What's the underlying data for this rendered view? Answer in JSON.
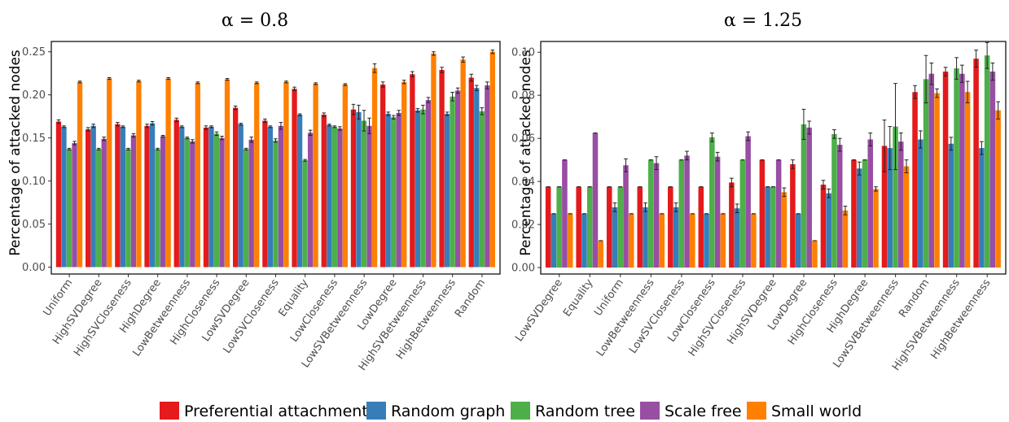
{
  "colors": [
    "#e41a1c",
    "#377eb8",
    "#4daf4a",
    "#984ea3",
    "#ff7f00"
  ],
  "legend": [
    "Preferential attachment",
    "Random graph",
    "Random tree",
    "Scale free",
    "Small world"
  ],
  "chart_data": [
    {
      "type": "bar",
      "title": "α = 0.8",
      "xlabel": "",
      "ylabel": "Percentage of attacked nodes",
      "ylim": [
        -0.008,
        0.262
      ],
      "yticks": [
        "0.00",
        "0.05",
        "0.10",
        "0.15",
        "0.20",
        "0.25"
      ],
      "ytick_values": [
        0,
        0.05,
        0.1,
        0.15,
        0.2,
        0.25
      ],
      "grid": false,
      "categories": [
        "Uniform",
        "HighSVDegree",
        "HighSVCloseness",
        "HighDegree",
        "LowBetweenness",
        "HighCloseness",
        "LowSVDegree",
        "LowSVCloseness",
        "Equality",
        "LowCloseness",
        "LowSVBetweenness",
        "LowDegree",
        "HighSVBetweenness",
        "HighBetweenness",
        "Random"
      ],
      "series": [
        {
          "name": "Preferential attachment",
          "values": [
            0.169,
            0.16,
            0.166,
            0.164,
            0.171,
            0.162,
            0.185,
            0.17,
            0.207,
            0.177,
            0.183,
            0.212,
            0.224,
            0.229,
            0.22
          ],
          "errors": [
            0.002,
            0.002,
            0.002,
            0.002,
            0.002,
            0.002,
            0.002,
            0.002,
            0.002,
            0.002,
            0.006,
            0.003,
            0.003,
            0.003,
            0.004
          ]
        },
        {
          "name": "Random graph",
          "values": [
            0.163,
            0.164,
            0.163,
            0.167,
            0.163,
            0.163,
            0.166,
            0.163,
            0.177,
            0.165,
            0.18,
            0.178,
            0.182,
            0.178,
            0.208
          ],
          "errors": [
            0.001,
            0.002,
            0.001,
            0.002,
            0.001,
            0.001,
            0.001,
            0.001,
            0.001,
            0.001,
            0.008,
            0.002,
            0.002,
            0.002,
            0.003
          ]
        },
        {
          "name": "Random tree",
          "values": [
            0.137,
            0.137,
            0.137,
            0.137,
            0.15,
            0.155,
            0.137,
            0.147,
            0.124,
            0.163,
            0.17,
            0.174,
            0.183,
            0.198,
            0.181
          ],
          "errors": [
            0.001,
            0.001,
            0.001,
            0.001,
            0.001,
            0.002,
            0.001,
            0.002,
            0.001,
            0.001,
            0.012,
            0.002,
            0.005,
            0.005,
            0.004
          ]
        },
        {
          "name": "Scale free",
          "values": [
            0.144,
            0.149,
            0.153,
            0.152,
            0.146,
            0.15,
            0.148,
            0.164,
            0.156,
            0.161,
            0.164,
            0.179,
            0.194,
            0.205,
            0.211
          ],
          "errors": [
            0.002,
            0.002,
            0.002,
            0.001,
            0.002,
            0.002,
            0.003,
            0.004,
            0.003,
            0.002,
            0.009,
            0.003,
            0.003,
            0.003,
            0.004
          ]
        },
        {
          "name": "Small world",
          "values": [
            0.215,
            0.219,
            0.216,
            0.219,
            0.214,
            0.218,
            0.214,
            0.215,
            0.213,
            0.212,
            0.231,
            0.215,
            0.248,
            0.241,
            0.25
          ],
          "errors": [
            0.001,
            0.001,
            0.001,
            0.001,
            0.001,
            0.001,
            0.001,
            0.001,
            0.001,
            0.001,
            0.005,
            0.002,
            0.002,
            0.003,
            0.002
          ]
        }
      ]
    },
    {
      "type": "bar",
      "title": "α = 1.25",
      "xlabel": "",
      "ylabel": "Percentage of attacked nodes",
      "ylim": [
        -0.003,
        0.105
      ],
      "yticks": [
        "0.00",
        "0.02",
        "0.04",
        "0.06",
        "0.08",
        "0.10"
      ],
      "ytick_values": [
        0,
        0.02,
        0.04,
        0.06,
        0.08,
        0.1
      ],
      "grid": false,
      "categories": [
        "LowSVDegree",
        "Equality",
        "Uniform",
        "LowBetweenness",
        "LowSVCloseness",
        "LowCloseness",
        "HighSVCloseness",
        "HighSVDegree",
        "LowDegree",
        "HighCloseness",
        "HighDegree",
        "LowSVBetweenness",
        "Random",
        "HighSVBetweenness",
        "HighBetweenness"
      ],
      "series": [
        {
          "name": "Preferential attachment",
          "values": [
            0.0375,
            0.0375,
            0.0375,
            0.0375,
            0.0375,
            0.0375,
            0.0395,
            0.05,
            0.048,
            0.0385,
            0.05,
            0.0565,
            0.0815,
            0.091,
            0.097
          ],
          "errors": [
            0,
            0,
            0,
            0,
            0,
            0,
            0.002,
            0,
            0.002,
            0.002,
            0,
            0.012,
            0.003,
            0.002,
            0.004
          ]
        },
        {
          "name": "Random graph",
          "values": [
            0.025,
            0.025,
            0.028,
            0.028,
            0.028,
            0.025,
            0.0275,
            0.0375,
            0.025,
            0.0345,
            0.046,
            0.0555,
            0.0595,
            0.0575,
            0.0555
          ],
          "errors": [
            0,
            0,
            0.002,
            0.002,
            0.002,
            0,
            0.002,
            0,
            0,
            0.002,
            0.003,
            0.01,
            0.004,
            0.003,
            0.003
          ]
        },
        {
          "name": "Random tree",
          "values": [
            0.0375,
            0.0375,
            0.0375,
            0.05,
            0.05,
            0.0605,
            0.05,
            0.0375,
            0.0665,
            0.062,
            0.05,
            0.0655,
            0.0875,
            0.0925,
            0.0985
          ],
          "errors": [
            0,
            0,
            0,
            0,
            0,
            0.002,
            0,
            0,
            0.007,
            0.002,
            0,
            0.02,
            0.011,
            0.005,
            0.006
          ]
        },
        {
          "name": "Scale free",
          "values": [
            0.05,
            0.0625,
            0.0475,
            0.0485,
            0.052,
            0.0515,
            0.061,
            0.05,
            0.065,
            0.057,
            0.0595,
            0.0585,
            0.09,
            0.09,
            0.091
          ],
          "errors": [
            0,
            0,
            0.003,
            0.003,
            0.002,
            0.002,
            0.002,
            0,
            0.003,
            0.003,
            0.003,
            0.004,
            0.005,
            0.004,
            0.004
          ]
        },
        {
          "name": "Small world",
          "values": [
            0.025,
            0.0125,
            0.025,
            0.025,
            0.025,
            0.025,
            0.025,
            0.035,
            0.0125,
            0.0265,
            0.0365,
            0.047,
            0.081,
            0.0815,
            0.073
          ],
          "errors": [
            0,
            0,
            0,
            0,
            0,
            0,
            0,
            0.002,
            0,
            0.002,
            0.001,
            0.003,
            0.002,
            0.005,
            0.004
          ]
        }
      ]
    }
  ]
}
